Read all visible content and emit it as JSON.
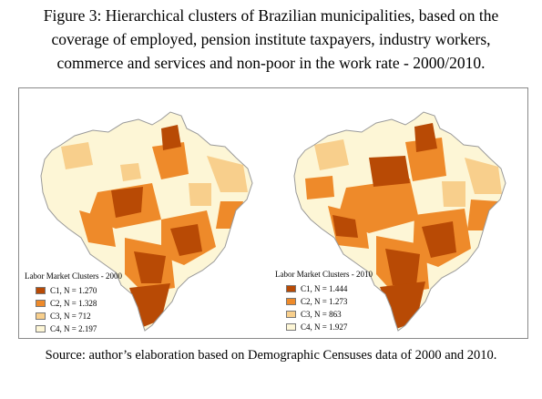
{
  "caption": {
    "line1": "Figure 3: Hierarchical clusters of Brazilian municipalities, based on the",
    "line2": "coverage of employed, pension institute taxpayers, industry workers,",
    "line3": "commerce and services and non-poor in the work rate - 2000/2010."
  },
  "colors": {
    "c1": "#b84a05",
    "c2": "#ee8a2a",
    "c3": "#f8cf8c",
    "c4": "#fdf6d6",
    "border": "#9a9a9a"
  },
  "maps": [
    {
      "legend_title": "Labor Market Clusters - 2000",
      "items": [
        {
          "label": "C1, N = 1.270",
          "color": "#b84a05"
        },
        {
          "label": "C2, N = 1.328",
          "color": "#ee8a2a"
        },
        {
          "label": "C3, N = 712",
          "color": "#f8cf8c"
        },
        {
          "label": "C4, N = 2.197",
          "color": "#fdf6d6"
        }
      ]
    },
    {
      "legend_title": "Labor Market Clusters - 2010",
      "items": [
        {
          "label": "C1, N = 1.444",
          "color": "#b84a05"
        },
        {
          "label": "C2, N = 1.273",
          "color": "#ee8a2a"
        },
        {
          "label": "C3, N = 863",
          "color": "#f8cf8c"
        },
        {
          "label": "C4, N = 1.927",
          "color": "#fdf6d6"
        }
      ]
    }
  ],
  "source": "Source: author’s elaboration based on Demographic Censuses data of 2000 and 2010."
}
